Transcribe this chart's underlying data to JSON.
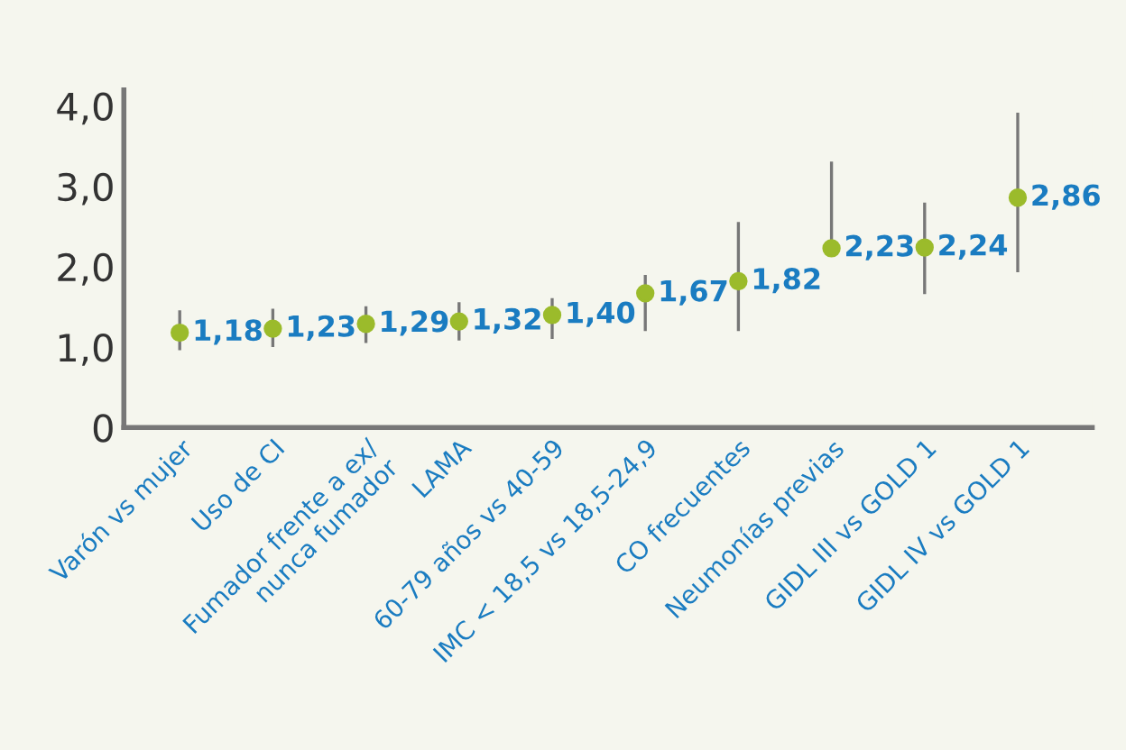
{
  "chart_data": {
    "type": "scatter",
    "categories": [
      "Varón vs mujer",
      "Uso de CI",
      "Fumador frente a ex/\nnunca fumador",
      "LAMA",
      "60-79 años vs 40-59",
      "IMC < 18,5 vs 18,5-24,9",
      "CO frecuentes",
      "Neumonías previas",
      "GIDL III vs GOLD 1",
      "GIDL IV vs GOLD 1"
    ],
    "values": [
      1.18,
      1.23,
      1.29,
      1.32,
      1.4,
      1.67,
      1.82,
      2.23,
      2.24,
      2.86
    ],
    "value_labels": [
      "1,18",
      "1,23",
      "1,29",
      "1,32",
      "1,40",
      "1,67",
      "1,82",
      "2,23",
      "2,24",
      "2,86"
    ],
    "errors": [
      [
        0.98,
        1.44
      ],
      [
        1.02,
        1.46
      ],
      [
        1.07,
        1.49
      ],
      [
        1.1,
        1.54
      ],
      [
        1.12,
        1.59
      ],
      [
        1.22,
        1.88
      ],
      [
        1.22,
        2.54
      ],
      [
        2.34,
        3.29
      ],
      [
        1.68,
        2.78
      ],
      [
        1.95,
        3.9
      ]
    ],
    "color": "#9bbb2b",
    "ylim": [
      0,
      4.2
    ],
    "yticks": [
      {
        "value": 0,
        "label": "0"
      },
      {
        "value": 1,
        "label": "1,0"
      },
      {
        "value": 2,
        "label": "2,0"
      },
      {
        "value": 3,
        "label": "3,0"
      },
      {
        "value": 4,
        "label": "4,0"
      }
    ],
    "marker": "circle",
    "grid": false,
    "legend": false
  }
}
